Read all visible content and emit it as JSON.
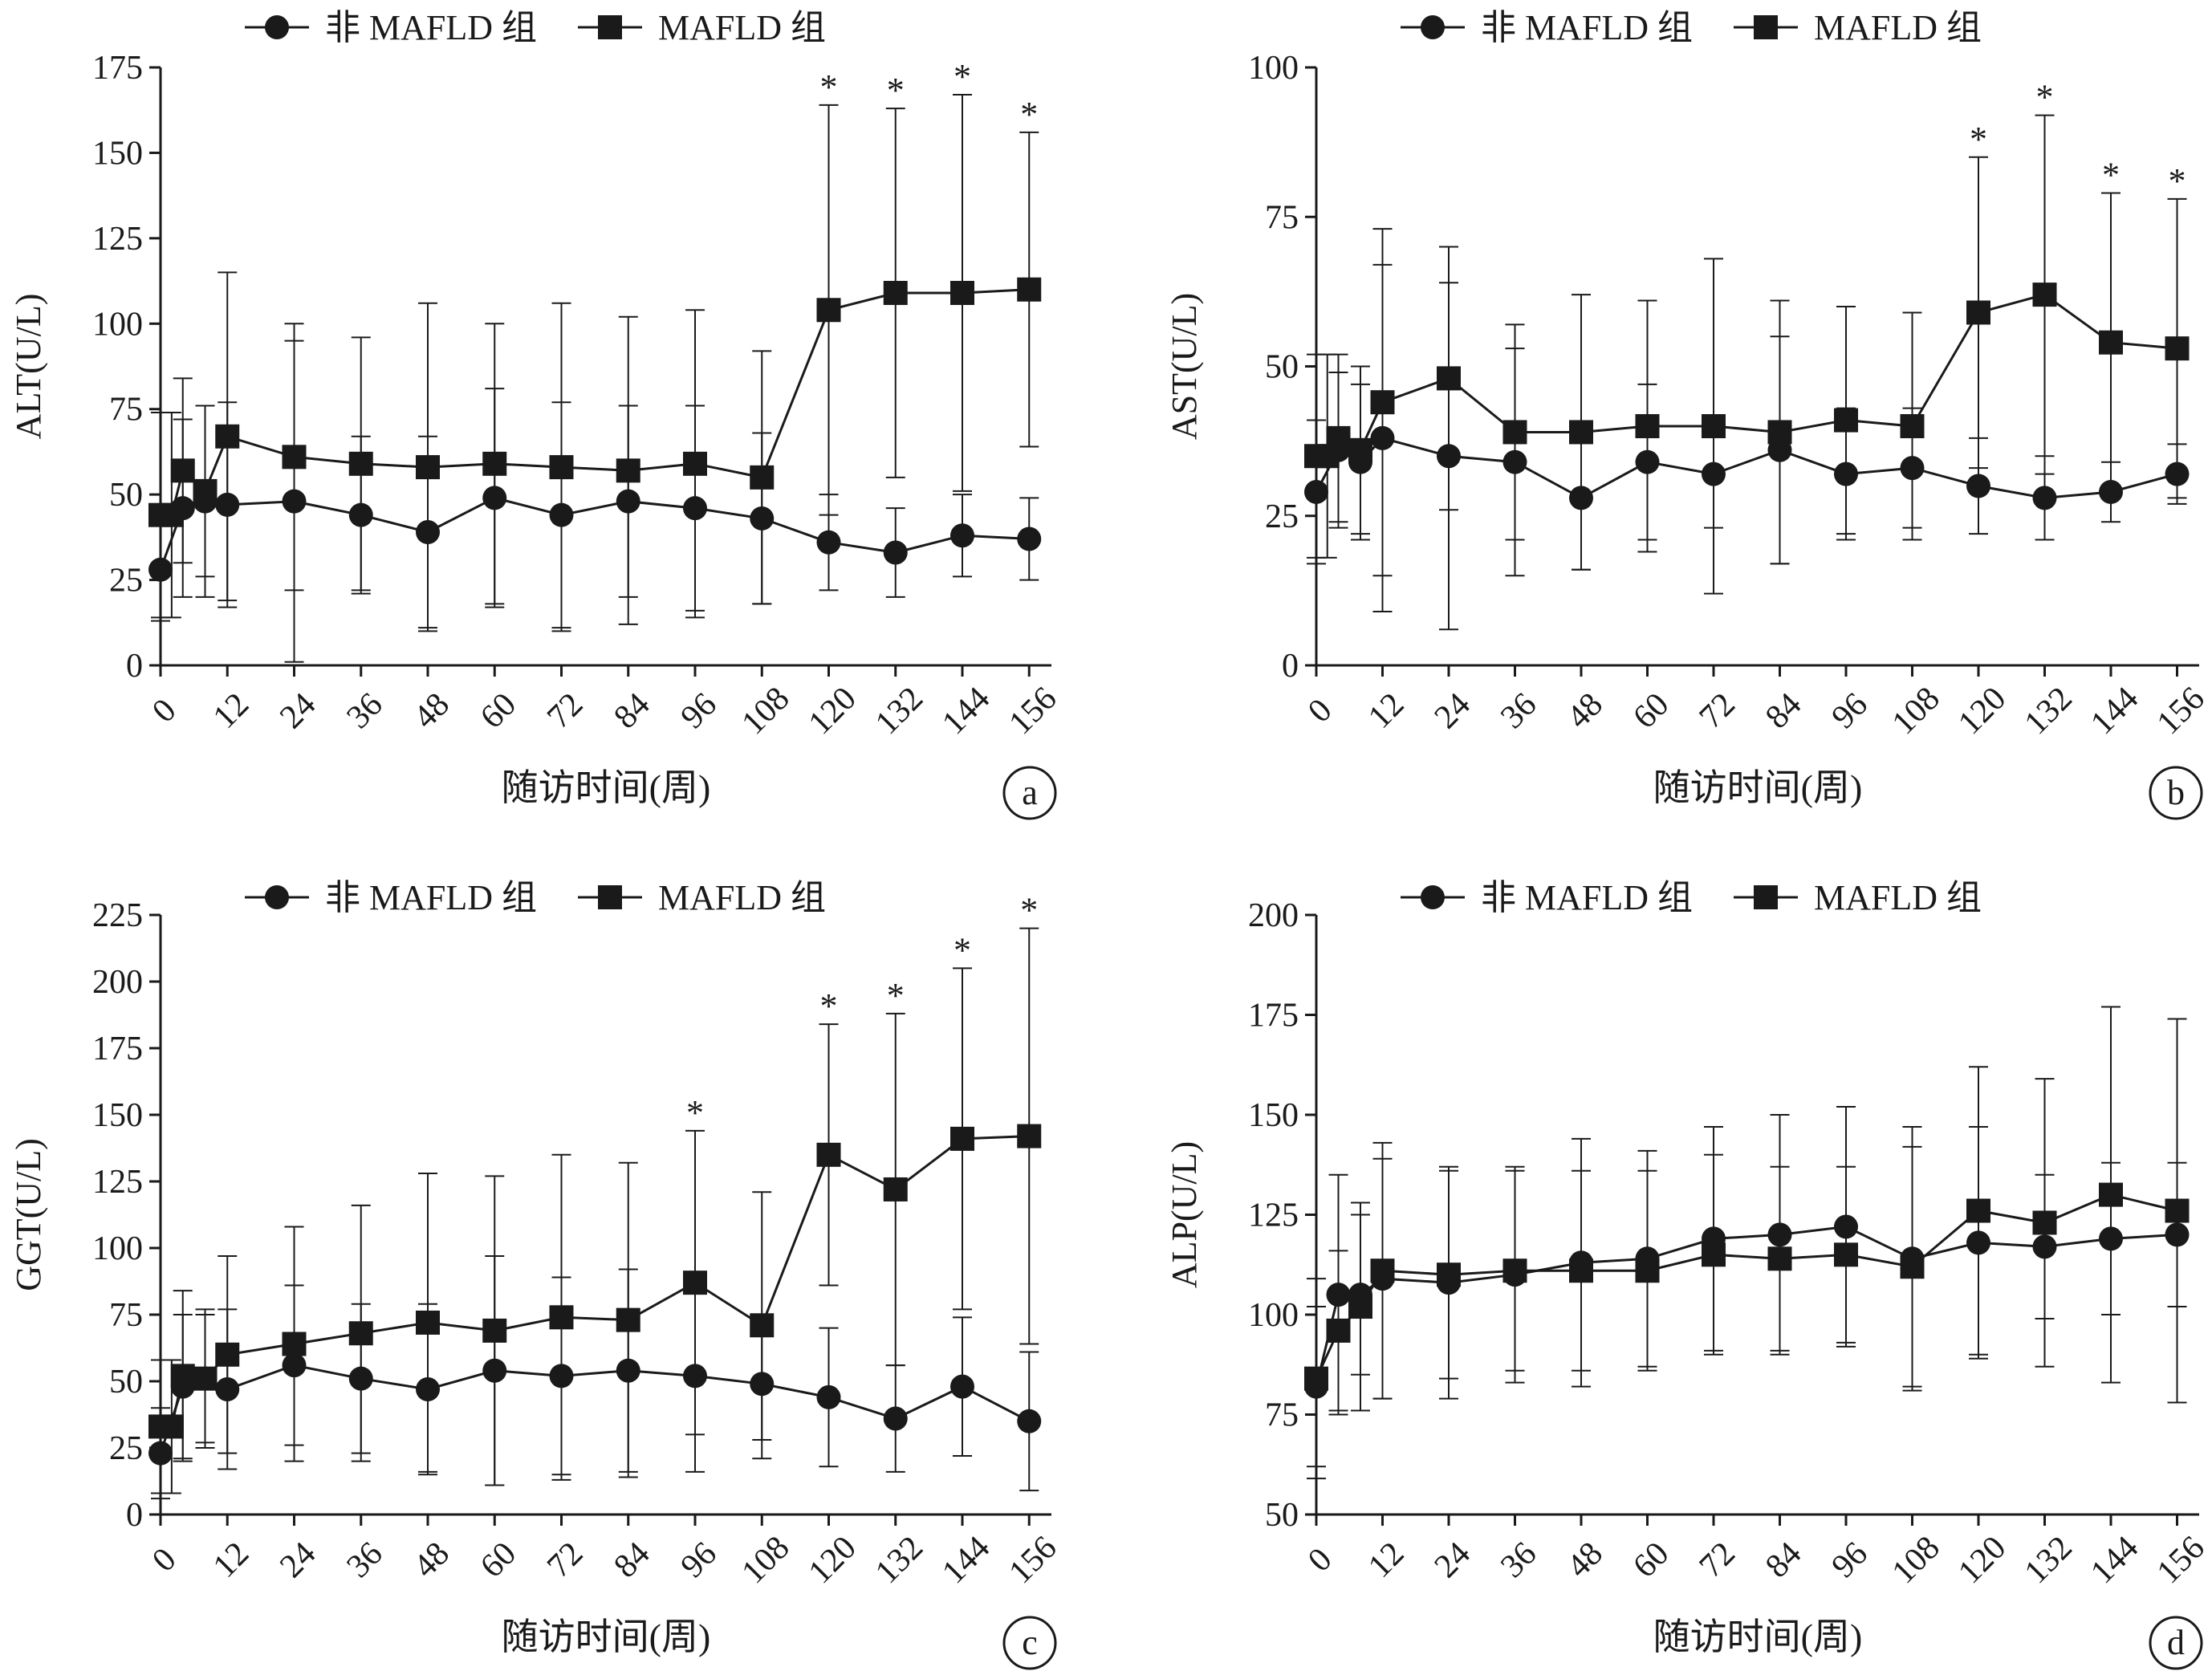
{
  "legend": {
    "non": "非 MAFLD 组",
    "mafld": "MAFLD 组"
  },
  "chart_data": [
    {
      "type": "line",
      "panel": "a",
      "xlabel": "随访时间(周)",
      "ylabel": "ALT(U/L)",
      "ylim": [
        0,
        175
      ],
      "yticks": [
        0,
        25,
        50,
        75,
        100,
        125,
        150,
        175
      ],
      "xticks": [
        0,
        12,
        24,
        36,
        48,
        60,
        72,
        84,
        96,
        108,
        120,
        132,
        144,
        156
      ],
      "grid": false,
      "legend_position": "top",
      "series": [
        {
          "name": "非 MAFLD 组",
          "marker": "circle",
          "points": [
            {
              "x": 0,
              "y": 28,
              "err": 15
            },
            {
              "x": 4,
              "y": 46,
              "err": 26
            },
            {
              "x": 8,
              "y": 48,
              "err": 28
            },
            {
              "x": 12,
              "y": 47,
              "err": 30
            },
            {
              "x": 24,
              "y": 48,
              "err": 47
            },
            {
              "x": 36,
              "y": 44,
              "err": 23
            },
            {
              "x": 48,
              "y": 39,
              "err": 28
            },
            {
              "x": 60,
              "y": 49,
              "err": 32
            },
            {
              "x": 72,
              "y": 44,
              "err": 33
            },
            {
              "x": 84,
              "y": 48,
              "err": 28
            },
            {
              "x": 96,
              "y": 46,
              "err": 30
            },
            {
              "x": 108,
              "y": 43,
              "err": 25
            },
            {
              "x": 120,
              "y": 36,
              "err": 14
            },
            {
              "x": 132,
              "y": 33,
              "err": 13
            },
            {
              "x": 144,
              "y": 38,
              "err": 12
            },
            {
              "x": 156,
              "y": 37,
              "err": 12
            }
          ]
        },
        {
          "name": "MAFLD 组",
          "marker": "square",
          "points": [
            {
              "x": 0,
              "y": 44,
              "err": 30
            },
            {
              "x": 2,
              "y": 44,
              "err": 30
            },
            {
              "x": 4,
              "y": 57,
              "err": 27
            },
            {
              "x": 8,
              "y": 51,
              "err": 25
            },
            {
              "x": 12,
              "y": 67,
              "err": 48
            },
            {
              "x": 24,
              "y": 61,
              "err": 39
            },
            {
              "x": 36,
              "y": 59,
              "err": 37
            },
            {
              "x": 48,
              "y": 58,
              "err": 48
            },
            {
              "x": 60,
              "y": 59,
              "err": 41
            },
            {
              "x": 72,
              "y": 58,
              "err": 48
            },
            {
              "x": 84,
              "y": 57,
              "err": 45
            },
            {
              "x": 96,
              "y": 59,
              "err": 45
            },
            {
              "x": 108,
              "y": 55,
              "err": 37
            },
            {
              "x": 120,
              "y": 104,
              "err": 60
            },
            {
              "x": 132,
              "y": 109,
              "err": 54
            },
            {
              "x": 144,
              "y": 109,
              "err": 58
            },
            {
              "x": 156,
              "y": 110,
              "err": 46
            }
          ]
        }
      ],
      "significant_x": [
        120,
        132,
        144,
        156
      ],
      "significance_mark": "*"
    },
    {
      "type": "line",
      "panel": "b",
      "xlabel": "随访时间(周)",
      "ylabel": "AST(U/L)",
      "ylim": [
        0,
        100
      ],
      "yticks": [
        0,
        25,
        50,
        75,
        100
      ],
      "xticks": [
        0,
        12,
        24,
        36,
        48,
        60,
        72,
        84,
        96,
        108,
        120,
        132,
        144,
        156
      ],
      "grid": false,
      "legend_position": "top",
      "series": [
        {
          "name": "非 MAFLD 组",
          "marker": "circle",
          "points": [
            {
              "x": 0,
              "y": 29,
              "err": 12
            },
            {
              "x": 4,
              "y": 36,
              "err": 13
            },
            {
              "x": 8,
              "y": 34,
              "err": 13
            },
            {
              "x": 12,
              "y": 38,
              "err": 29
            },
            {
              "x": 24,
              "y": 35,
              "err": 29
            },
            {
              "x": 36,
              "y": 34,
              "err": 19
            },
            {
              "x": 48,
              "y": 28,
              "err": 12
            },
            {
              "x": 60,
              "y": 34,
              "err": 13
            },
            {
              "x": 72,
              "y": 32,
              "err": 9
            },
            {
              "x": 84,
              "y": 36,
              "err": 19
            },
            {
              "x": 96,
              "y": 32,
              "err": 11
            },
            {
              "x": 108,
              "y": 33,
              "err": 10
            },
            {
              "x": 120,
              "y": 30,
              "err": 8
            },
            {
              "x": 132,
              "y": 28,
              "err": 7
            },
            {
              "x": 144,
              "y": 29,
              "err": 5
            },
            {
              "x": 156,
              "y": 32,
              "err": 5
            }
          ]
        },
        {
          "name": "MAFLD 组",
          "marker": "square",
          "points": [
            {
              "x": 0,
              "y": 35,
              "err": 17
            },
            {
              "x": 2,
              "y": 35,
              "err": 17
            },
            {
              "x": 4,
              "y": 38,
              "err": 14
            },
            {
              "x": 8,
              "y": 36,
              "err": 14
            },
            {
              "x": 12,
              "y": 44,
              "err": 29
            },
            {
              "x": 24,
              "y": 48,
              "err": 22
            },
            {
              "x": 36,
              "y": 39,
              "err": 18
            },
            {
              "x": 48,
              "y": 39,
              "err": 23
            },
            {
              "x": 60,
              "y": 40,
              "err": 21
            },
            {
              "x": 72,
              "y": 40,
              "err": 28
            },
            {
              "x": 84,
              "y": 39,
              "err": 22
            },
            {
              "x": 96,
              "y": 41,
              "err": 19
            },
            {
              "x": 108,
              "y": 40,
              "err": 19
            },
            {
              "x": 120,
              "y": 59,
              "err": 26
            },
            {
              "x": 132,
              "y": 62,
              "err": 30
            },
            {
              "x": 144,
              "y": 54,
              "err": 25
            },
            {
              "x": 156,
              "y": 53,
              "err": 25
            }
          ]
        }
      ],
      "significant_x": [
        120,
        132,
        144,
        156
      ],
      "significance_mark": "*"
    },
    {
      "type": "line",
      "panel": "c",
      "xlabel": "随访时间(周)",
      "ylabel": "GGT(U/L)",
      "ylim": [
        0,
        225
      ],
      "yticks": [
        0,
        25,
        50,
        75,
        100,
        125,
        150,
        175,
        200,
        225
      ],
      "xticks": [
        0,
        12,
        24,
        36,
        48,
        60,
        72,
        84,
        96,
        108,
        120,
        132,
        144,
        156
      ],
      "grid": false,
      "legend_position": "top",
      "series": [
        {
          "name": "非 MAFLD 组",
          "marker": "circle",
          "points": [
            {
              "x": 0,
              "y": 23,
              "err": 17
            },
            {
              "x": 4,
              "y": 48,
              "err": 27
            },
            {
              "x": 8,
              "y": 51,
              "err": 24
            },
            {
              "x": 12,
              "y": 47,
              "err": 30
            },
            {
              "x": 24,
              "y": 56,
              "err": 30
            },
            {
              "x": 36,
              "y": 51,
              "err": 28
            },
            {
              "x": 48,
              "y": 47,
              "err": 32
            },
            {
              "x": 60,
              "y": 54,
              "err": 43
            },
            {
              "x": 72,
              "y": 52,
              "err": 37
            },
            {
              "x": 84,
              "y": 54,
              "err": 38
            },
            {
              "x": 96,
              "y": 52,
              "err": 36
            },
            {
              "x": 108,
              "y": 49,
              "err": 21
            },
            {
              "x": 120,
              "y": 44,
              "err": 26
            },
            {
              "x": 132,
              "y": 36,
              "err": 20
            },
            {
              "x": 144,
              "y": 48,
              "err": 26
            },
            {
              "x": 156,
              "y": 35,
              "err": 26
            }
          ]
        },
        {
          "name": "MAFLD 组",
          "marker": "square",
          "points": [
            {
              "x": 0,
              "y": 33,
              "err": 25
            },
            {
              "x": 2,
              "y": 33,
              "err": 25
            },
            {
              "x": 4,
              "y": 52,
              "err": 32
            },
            {
              "x": 8,
              "y": 51,
              "err": 26
            },
            {
              "x": 12,
              "y": 60,
              "err": 37
            },
            {
              "x": 24,
              "y": 64,
              "err": 44
            },
            {
              "x": 36,
              "y": 68,
              "err": 48
            },
            {
              "x": 48,
              "y": 72,
              "err": 56
            },
            {
              "x": 60,
              "y": 69,
              "err": 58
            },
            {
              "x": 72,
              "y": 74,
              "err": 61
            },
            {
              "x": 84,
              "y": 73,
              "err": 59
            },
            {
              "x": 96,
              "y": 87,
              "err": 57
            },
            {
              "x": 108,
              "y": 71,
              "err": 50
            },
            {
              "x": 120,
              "y": 135,
              "err": 49
            },
            {
              "x": 132,
              "y": 122,
              "err": 66
            },
            {
              "x": 144,
              "y": 141,
              "err": 64
            },
            {
              "x": 156,
              "y": 142,
              "err": 78
            }
          ]
        }
      ],
      "significant_x": [
        96,
        120,
        132,
        144,
        156
      ],
      "significance_mark": "*"
    },
    {
      "type": "line",
      "panel": "d",
      "xlabel": "随访时间(周)",
      "ylabel": "ALP(U/L)",
      "ylim": [
        50,
        200
      ],
      "yticks": [
        50,
        75,
        100,
        125,
        150,
        175,
        200
      ],
      "xticks": [
        0,
        12,
        24,
        36,
        48,
        60,
        72,
        84,
        96,
        108,
        120,
        132,
        144,
        156
      ],
      "grid": false,
      "legend_position": "top",
      "series": [
        {
          "name": "非 MAFLD 组",
          "marker": "circle",
          "points": [
            {
              "x": 0,
              "y": 82,
              "err": 20
            },
            {
              "x": 4,
              "y": 105,
              "err": 30
            },
            {
              "x": 8,
              "y": 105,
              "err": 20
            },
            {
              "x": 12,
              "y": 109,
              "err": 30
            },
            {
              "x": 24,
              "y": 108,
              "err": 29
            },
            {
              "x": 36,
              "y": 110,
              "err": 27
            },
            {
              "x": 48,
              "y": 113,
              "err": 31
            },
            {
              "x": 60,
              "y": 114,
              "err": 27
            },
            {
              "x": 72,
              "y": 119,
              "err": 28
            },
            {
              "x": 84,
              "y": 120,
              "err": 30
            },
            {
              "x": 96,
              "y": 122,
              "err": 30
            },
            {
              "x": 108,
              "y": 114,
              "err": 33
            },
            {
              "x": 120,
              "y": 118,
              "err": 29
            },
            {
              "x": 132,
              "y": 117,
              "err": 18
            },
            {
              "x": 144,
              "y": 119,
              "err": 19
            },
            {
              "x": 156,
              "y": 120,
              "err": 18
            }
          ]
        },
        {
          "name": "MAFLD 组",
          "marker": "square",
          "points": [
            {
              "x": 0,
              "y": 84,
              "err": 25
            },
            {
              "x": 4,
              "y": 96,
              "err": 20
            },
            {
              "x": 8,
              "y": 102,
              "err": 26
            },
            {
              "x": 12,
              "y": 111,
              "err": 32
            },
            {
              "x": 24,
              "y": 110,
              "err": 26
            },
            {
              "x": 36,
              "y": 111,
              "err": 25
            },
            {
              "x": 48,
              "y": 111,
              "err": 25
            },
            {
              "x": 60,
              "y": 111,
              "err": 25
            },
            {
              "x": 72,
              "y": 115,
              "err": 25
            },
            {
              "x": 84,
              "y": 114,
              "err": 23
            },
            {
              "x": 96,
              "y": 115,
              "err": 22
            },
            {
              "x": 108,
              "y": 112,
              "err": 30
            },
            {
              "x": 120,
              "y": 126,
              "err": 36
            },
            {
              "x": 132,
              "y": 123,
              "err": 36
            },
            {
              "x": 144,
              "y": 130,
              "err": 47
            },
            {
              "x": 156,
              "y": 126,
              "err": 48
            }
          ]
        }
      ],
      "significant_x": [],
      "significance_mark": "*"
    }
  ]
}
